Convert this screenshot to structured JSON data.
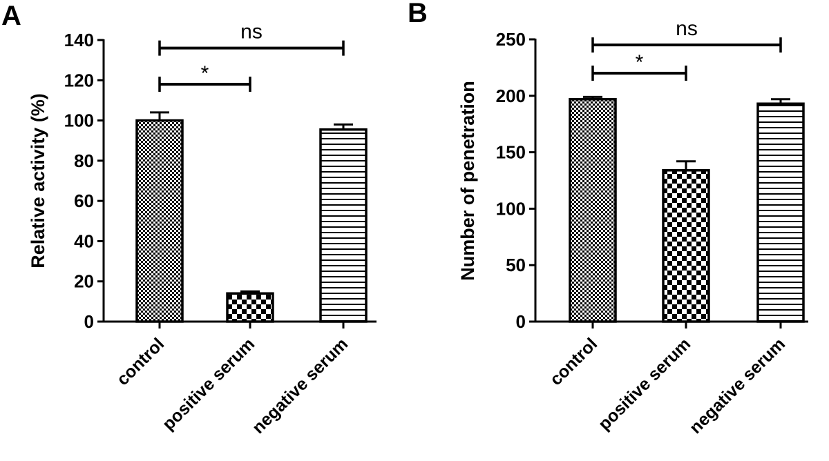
{
  "colors": {
    "ink": "#000000",
    "background": "#ffffff"
  },
  "chart_data": [
    {
      "type": "bar",
      "panel_label": "A",
      "title": "",
      "xlabel": "",
      "ylabel": "Relative activity (%)",
      "ylim": [
        0,
        140
      ],
      "yticks": [
        0,
        20,
        40,
        60,
        80,
        100,
        120,
        140
      ],
      "ytick_labels": [
        "0",
        "20",
        "40",
        "60",
        "80",
        "100",
        "120",
        "140"
      ],
      "categories": [
        "control",
        "positive serum",
        "negative serum"
      ],
      "values": [
        100,
        14,
        95.5
      ],
      "errors": [
        4,
        1,
        2.5
      ],
      "patterns": [
        "fine-checker",
        "coarse-checker",
        "horizontal-lines"
      ],
      "grid": false,
      "legend": "none",
      "significance": [
        {
          "from": 0,
          "to": 1,
          "y": 118,
          "label": "*"
        },
        {
          "from": 0,
          "to": 2,
          "y": 136,
          "label": "ns"
        }
      ]
    },
    {
      "type": "bar",
      "panel_label": "B",
      "title": "",
      "xlabel": "",
      "ylabel": "Number of penetration",
      "ylim": [
        0,
        250
      ],
      "yticks": [
        0,
        50,
        100,
        150,
        200,
        250
      ],
      "ytick_labels": [
        "0",
        "50",
        "100",
        "150",
        "200",
        "250"
      ],
      "categories": [
        "control",
        "positive serum",
        "negative serum"
      ],
      "values": [
        197,
        134,
        193
      ],
      "errors": [
        2,
        8,
        4
      ],
      "patterns": [
        "fine-checker",
        "coarse-checker",
        "horizontal-lines"
      ],
      "grid": false,
      "legend": "none",
      "significance": [
        {
          "from": 0,
          "to": 1,
          "y": 220,
          "label": "*"
        },
        {
          "from": 0,
          "to": 2,
          "y": 245,
          "label": "ns"
        }
      ]
    }
  ]
}
